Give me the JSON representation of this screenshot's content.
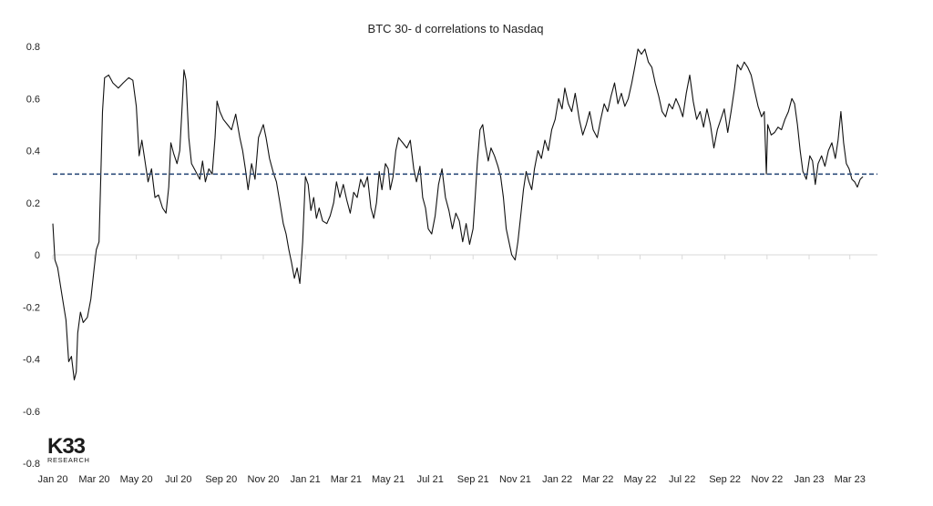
{
  "chart_data": {
    "type": "line",
    "title": "BTC 30- d correlations to Nasdaq",
    "xlabel": "",
    "ylabel": "",
    "ylim": [
      -0.8,
      0.8
    ],
    "yticks": [
      "0.8",
      "0.6",
      "0.4",
      "0.2",
      "0",
      "-0.2",
      "-0.4",
      "-0.6",
      "-0.8"
    ],
    "ytick_values": [
      0.8,
      0.6,
      0.4,
      0.2,
      0,
      -0.2,
      -0.4,
      -0.6,
      -0.8
    ],
    "x_range": [
      "2020-01-01",
      "2023-04-10"
    ],
    "xticks": [
      {
        "label": "Jan 20",
        "date": "2020-01-01"
      },
      {
        "label": "Mar 20",
        "date": "2020-03-01"
      },
      {
        "label": "May 20",
        "date": "2020-05-01"
      },
      {
        "label": "Jul 20",
        "date": "2020-07-01"
      },
      {
        "label": "Sep 20",
        "date": "2020-09-01"
      },
      {
        "label": "Nov 20",
        "date": "2020-11-01"
      },
      {
        "label": "Jan 21",
        "date": "2021-01-01"
      },
      {
        "label": "Mar 21",
        "date": "2021-03-01"
      },
      {
        "label": "May 21",
        "date": "2021-05-01"
      },
      {
        "label": "Jul 21",
        "date": "2021-07-01"
      },
      {
        "label": "Sep 21",
        "date": "2021-09-01"
      },
      {
        "label": "Nov 21",
        "date": "2021-11-01"
      },
      {
        "label": "Jan 22",
        "date": "2022-01-01"
      },
      {
        "label": "Mar 22",
        "date": "2022-03-01"
      },
      {
        "label": "May 22",
        "date": "2022-05-01"
      },
      {
        "label": "Jul 22",
        "date": "2022-07-01"
      },
      {
        "label": "Sep 22",
        "date": "2022-09-01"
      },
      {
        "label": "Nov 22",
        "date": "2022-11-01"
      },
      {
        "label": "Jan 23",
        "date": "2023-01-01"
      },
      {
        "label": "Mar 23",
        "date": "2023-03-01"
      }
    ],
    "series": [
      {
        "line_color": "#111111",
        "points": [
          [
            "2020-01-01",
            0.12
          ],
          [
            "2020-01-04",
            -0.02
          ],
          [
            "2020-01-08",
            -0.05
          ],
          [
            "2020-01-14",
            -0.15
          ],
          [
            "2020-01-20",
            -0.25
          ],
          [
            "2020-01-24",
            -0.41
          ],
          [
            "2020-01-28",
            -0.39
          ],
          [
            "2020-02-01",
            -0.48
          ],
          [
            "2020-02-04",
            -0.45
          ],
          [
            "2020-02-06",
            -0.3
          ],
          [
            "2020-02-10",
            -0.22
          ],
          [
            "2020-02-14",
            -0.26
          ],
          [
            "2020-02-20",
            -0.24
          ],
          [
            "2020-02-25",
            -0.17
          ],
          [
            "2020-03-01",
            -0.05
          ],
          [
            "2020-03-04",
            0.02
          ],
          [
            "2020-03-08",
            0.05
          ],
          [
            "2020-03-11",
            0.35
          ],
          [
            "2020-03-13",
            0.55
          ],
          [
            "2020-03-16",
            0.68
          ],
          [
            "2020-03-22",
            0.69
          ],
          [
            "2020-03-28",
            0.66
          ],
          [
            "2020-04-05",
            0.64
          ],
          [
            "2020-04-12",
            0.66
          ],
          [
            "2020-04-20",
            0.68
          ],
          [
            "2020-04-26",
            0.67
          ],
          [
            "2020-05-01",
            0.57
          ],
          [
            "2020-05-05",
            0.38
          ],
          [
            "2020-05-09",
            0.44
          ],
          [
            "2020-05-13",
            0.37
          ],
          [
            "2020-05-18",
            0.28
          ],
          [
            "2020-05-23",
            0.33
          ],
          [
            "2020-05-28",
            0.22
          ],
          [
            "2020-06-02",
            0.23
          ],
          [
            "2020-06-08",
            0.18
          ],
          [
            "2020-06-13",
            0.16
          ],
          [
            "2020-06-17",
            0.26
          ],
          [
            "2020-06-20",
            0.43
          ],
          [
            "2020-06-24",
            0.39
          ],
          [
            "2020-06-29",
            0.35
          ],
          [
            "2020-07-03",
            0.4
          ],
          [
            "2020-07-06",
            0.55
          ],
          [
            "2020-07-09",
            0.71
          ],
          [
            "2020-07-12",
            0.67
          ],
          [
            "2020-07-16",
            0.45
          ],
          [
            "2020-07-20",
            0.35
          ],
          [
            "2020-07-26",
            0.32
          ],
          [
            "2020-08-01",
            0.29
          ],
          [
            "2020-08-05",
            0.36
          ],
          [
            "2020-08-09",
            0.28
          ],
          [
            "2020-08-14",
            0.33
          ],
          [
            "2020-08-19",
            0.31
          ],
          [
            "2020-08-23",
            0.45
          ],
          [
            "2020-08-26",
            0.59
          ],
          [
            "2020-08-30",
            0.55
          ],
          [
            "2020-09-04",
            0.52
          ],
          [
            "2020-09-10",
            0.5
          ],
          [
            "2020-09-16",
            0.48
          ],
          [
            "2020-09-22",
            0.54
          ],
          [
            "2020-09-28",
            0.45
          ],
          [
            "2020-10-02",
            0.4
          ],
          [
            "2020-10-06",
            0.33
          ],
          [
            "2020-10-10",
            0.25
          ],
          [
            "2020-10-15",
            0.35
          ],
          [
            "2020-10-20",
            0.29
          ],
          [
            "2020-10-25",
            0.45
          ],
          [
            "2020-11-01",
            0.5
          ],
          [
            "2020-11-05",
            0.45
          ],
          [
            "2020-11-10",
            0.37
          ],
          [
            "2020-11-15",
            0.32
          ],
          [
            "2020-11-20",
            0.28
          ],
          [
            "2020-11-25",
            0.2
          ],
          [
            "2020-11-30",
            0.12
          ],
          [
            "2020-12-04",
            0.08
          ],
          [
            "2020-12-08",
            0.02
          ],
          [
            "2020-12-12",
            -0.03
          ],
          [
            "2020-12-16",
            -0.09
          ],
          [
            "2020-12-20",
            -0.05
          ],
          [
            "2020-12-24",
            -0.11
          ],
          [
            "2020-12-28",
            0.05
          ],
          [
            "2021-01-01",
            0.3
          ],
          [
            "2021-01-05",
            0.27
          ],
          [
            "2021-01-09",
            0.17
          ],
          [
            "2021-01-13",
            0.22
          ],
          [
            "2021-01-17",
            0.14
          ],
          [
            "2021-01-21",
            0.18
          ],
          [
            "2021-01-26",
            0.13
          ],
          [
            "2021-02-01",
            0.12
          ],
          [
            "2021-02-06",
            0.15
          ],
          [
            "2021-02-11",
            0.2
          ],
          [
            "2021-02-15",
            0.28
          ],
          [
            "2021-02-20",
            0.22
          ],
          [
            "2021-02-25",
            0.27
          ],
          [
            "2021-03-02",
            0.21
          ],
          [
            "2021-03-07",
            0.16
          ],
          [
            "2021-03-12",
            0.24
          ],
          [
            "2021-03-17",
            0.22
          ],
          [
            "2021-03-22",
            0.29
          ],
          [
            "2021-03-27",
            0.26
          ],
          [
            "2021-04-01",
            0.3
          ],
          [
            "2021-04-06",
            0.18
          ],
          [
            "2021-04-10",
            0.14
          ],
          [
            "2021-04-14",
            0.2
          ],
          [
            "2021-04-18",
            0.32
          ],
          [
            "2021-04-22",
            0.25
          ],
          [
            "2021-04-27",
            0.35
          ],
          [
            "2021-05-01",
            0.33
          ],
          [
            "2021-05-04",
            0.25
          ],
          [
            "2021-05-08",
            0.3
          ],
          [
            "2021-05-12",
            0.4
          ],
          [
            "2021-05-16",
            0.45
          ],
          [
            "2021-05-22",
            0.43
          ],
          [
            "2021-05-28",
            0.41
          ],
          [
            "2021-06-02",
            0.44
          ],
          [
            "2021-06-07",
            0.33
          ],
          [
            "2021-06-11",
            0.28
          ],
          [
            "2021-06-16",
            0.34
          ],
          [
            "2021-06-20",
            0.22
          ],
          [
            "2021-06-24",
            0.18
          ],
          [
            "2021-06-28",
            0.1
          ],
          [
            "2021-07-03",
            0.08
          ],
          [
            "2021-07-08",
            0.15
          ],
          [
            "2021-07-13",
            0.27
          ],
          [
            "2021-07-18",
            0.33
          ],
          [
            "2021-07-23",
            0.22
          ],
          [
            "2021-07-28",
            0.17
          ],
          [
            "2021-08-02",
            0.1
          ],
          [
            "2021-08-07",
            0.16
          ],
          [
            "2021-08-12",
            0.13
          ],
          [
            "2021-08-17",
            0.05
          ],
          [
            "2021-08-22",
            0.12
          ],
          [
            "2021-08-27",
            0.04
          ],
          [
            "2021-09-01",
            0.1
          ],
          [
            "2021-09-04",
            0.22
          ],
          [
            "2021-09-07",
            0.35
          ],
          [
            "2021-09-11",
            0.48
          ],
          [
            "2021-09-15",
            0.5
          ],
          [
            "2021-09-19",
            0.42
          ],
          [
            "2021-09-23",
            0.36
          ],
          [
            "2021-09-27",
            0.41
          ],
          [
            "2021-10-02",
            0.38
          ],
          [
            "2021-10-07",
            0.34
          ],
          [
            "2021-10-11",
            0.3
          ],
          [
            "2021-10-15",
            0.22
          ],
          [
            "2021-10-19",
            0.1
          ],
          [
            "2021-10-23",
            0.05
          ],
          [
            "2021-10-27",
            0.0
          ],
          [
            "2021-11-01",
            -0.02
          ],
          [
            "2021-11-05",
            0.05
          ],
          [
            "2021-11-09",
            0.15
          ],
          [
            "2021-11-13",
            0.25
          ],
          [
            "2021-11-17",
            0.32
          ],
          [
            "2021-11-21",
            0.28
          ],
          [
            "2021-11-25",
            0.25
          ],
          [
            "2021-11-29",
            0.33
          ],
          [
            "2021-12-04",
            0.4
          ],
          [
            "2021-12-09",
            0.37
          ],
          [
            "2021-12-14",
            0.44
          ],
          [
            "2021-12-19",
            0.4
          ],
          [
            "2021-12-24",
            0.48
          ],
          [
            "2021-12-29",
            0.52
          ],
          [
            "2022-01-03",
            0.6
          ],
          [
            "2022-01-08",
            0.56
          ],
          [
            "2022-01-12",
            0.64
          ],
          [
            "2022-01-17",
            0.58
          ],
          [
            "2022-01-22",
            0.55
          ],
          [
            "2022-01-27",
            0.62
          ],
          [
            "2022-02-02",
            0.52
          ],
          [
            "2022-02-07",
            0.46
          ],
          [
            "2022-02-12",
            0.5
          ],
          [
            "2022-02-17",
            0.55
          ],
          [
            "2022-02-22",
            0.48
          ],
          [
            "2022-02-28",
            0.45
          ],
          [
            "2022-03-05",
            0.52
          ],
          [
            "2022-03-10",
            0.58
          ],
          [
            "2022-03-15",
            0.55
          ],
          [
            "2022-03-20",
            0.61
          ],
          [
            "2022-03-25",
            0.66
          ],
          [
            "2022-03-30",
            0.58
          ],
          [
            "2022-04-04",
            0.62
          ],
          [
            "2022-04-09",
            0.57
          ],
          [
            "2022-04-14",
            0.6
          ],
          [
            "2022-04-19",
            0.66
          ],
          [
            "2022-04-24",
            0.73
          ],
          [
            "2022-04-28",
            0.79
          ],
          [
            "2022-05-03",
            0.77
          ],
          [
            "2022-05-08",
            0.79
          ],
          [
            "2022-05-13",
            0.74
          ],
          [
            "2022-05-18",
            0.72
          ],
          [
            "2022-05-23",
            0.66
          ],
          [
            "2022-05-28",
            0.61
          ],
          [
            "2022-06-02",
            0.55
          ],
          [
            "2022-06-07",
            0.53
          ],
          [
            "2022-06-12",
            0.58
          ],
          [
            "2022-06-17",
            0.56
          ],
          [
            "2022-06-22",
            0.6
          ],
          [
            "2022-06-27",
            0.57
          ],
          [
            "2022-07-02",
            0.53
          ],
          [
            "2022-07-07",
            0.62
          ],
          [
            "2022-07-12",
            0.69
          ],
          [
            "2022-07-17",
            0.59
          ],
          [
            "2022-07-22",
            0.52
          ],
          [
            "2022-07-27",
            0.55
          ],
          [
            "2022-08-01",
            0.49
          ],
          [
            "2022-08-06",
            0.56
          ],
          [
            "2022-08-11",
            0.5
          ],
          [
            "2022-08-16",
            0.41
          ],
          [
            "2022-08-21",
            0.48
          ],
          [
            "2022-08-26",
            0.52
          ],
          [
            "2022-08-31",
            0.56
          ],
          [
            "2022-09-05",
            0.47
          ],
          [
            "2022-09-10",
            0.55
          ],
          [
            "2022-09-15",
            0.64
          ],
          [
            "2022-09-19",
            0.73
          ],
          [
            "2022-09-24",
            0.71
          ],
          [
            "2022-09-29",
            0.74
          ],
          [
            "2022-10-04",
            0.72
          ],
          [
            "2022-10-09",
            0.69
          ],
          [
            "2022-10-14",
            0.63
          ],
          [
            "2022-10-19",
            0.57
          ],
          [
            "2022-10-24",
            0.53
          ],
          [
            "2022-10-28",
            0.55
          ],
          [
            "2022-10-31",
            0.31
          ],
          [
            "2022-11-02",
            0.5
          ],
          [
            "2022-11-07",
            0.46
          ],
          [
            "2022-11-12",
            0.47
          ],
          [
            "2022-11-17",
            0.49
          ],
          [
            "2022-11-22",
            0.48
          ],
          [
            "2022-11-27",
            0.52
          ],
          [
            "2022-12-02",
            0.55
          ],
          [
            "2022-12-07",
            0.6
          ],
          [
            "2022-12-11",
            0.58
          ],
          [
            "2022-12-15",
            0.5
          ],
          [
            "2022-12-19",
            0.4
          ],
          [
            "2022-12-23",
            0.32
          ],
          [
            "2022-12-28",
            0.29
          ],
          [
            "2023-01-02",
            0.38
          ],
          [
            "2023-01-06",
            0.36
          ],
          [
            "2023-01-10",
            0.27
          ],
          [
            "2023-01-14",
            0.35
          ],
          [
            "2023-01-19",
            0.38
          ],
          [
            "2023-01-24",
            0.34
          ],
          [
            "2023-01-29",
            0.4
          ],
          [
            "2023-02-03",
            0.43
          ],
          [
            "2023-02-08",
            0.37
          ],
          [
            "2023-02-12",
            0.44
          ],
          [
            "2023-02-16",
            0.55
          ],
          [
            "2023-02-20",
            0.43
          ],
          [
            "2023-02-24",
            0.35
          ],
          [
            "2023-02-28",
            0.33
          ],
          [
            "2023-03-04",
            0.29
          ],
          [
            "2023-03-08",
            0.28
          ],
          [
            "2023-03-12",
            0.26
          ],
          [
            "2023-03-16",
            0.29
          ],
          [
            "2023-03-20",
            0.3
          ]
        ]
      }
    ],
    "reference_lines": [
      {
        "y": 0.31,
        "style": "dashed",
        "color": "#2e4d7b"
      }
    ],
    "grid": false,
    "legend": "none"
  },
  "branding": {
    "logo_text": "K33",
    "logo_subtext": "RESEARCH"
  }
}
